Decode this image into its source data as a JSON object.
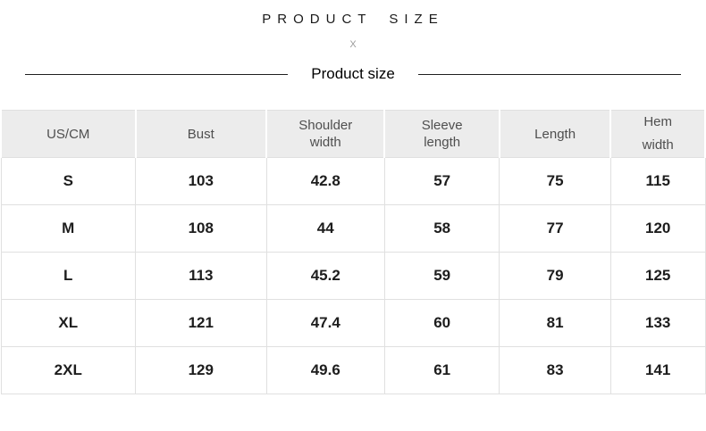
{
  "header": {
    "title": "PRODUCT SIZE",
    "separator": "X",
    "section_title": "Product size"
  },
  "table": {
    "headers": [
      "US/CM",
      "Bust",
      "Shoulder width",
      "Sleeve length",
      "Length",
      "Hem width"
    ],
    "rows": [
      [
        "S",
        "103",
        "42.8",
        "57",
        "75",
        "115"
      ],
      [
        "M",
        "108",
        "44",
        "58",
        "77",
        "120"
      ],
      [
        "L",
        "113",
        "45.2",
        "59",
        "79",
        "125"
      ],
      [
        "XL",
        "121",
        "47.4",
        "60",
        "81",
        "133"
      ],
      [
        "2XL",
        "129",
        "49.6",
        "61",
        "83",
        "141"
      ]
    ]
  },
  "colors": {
    "header_background": "#ececec",
    "header_text": "#4f4f4f",
    "body_text": "#1d1d1d",
    "table_border": "#e0e0e0",
    "divider_line": "#1f1f1f",
    "separator_x": "#9b9b9b"
  },
  "layout": {
    "column_widths_percent": [
      19.1,
      18.6,
      16.8,
      16.3,
      15.8,
      13.4
    ]
  }
}
